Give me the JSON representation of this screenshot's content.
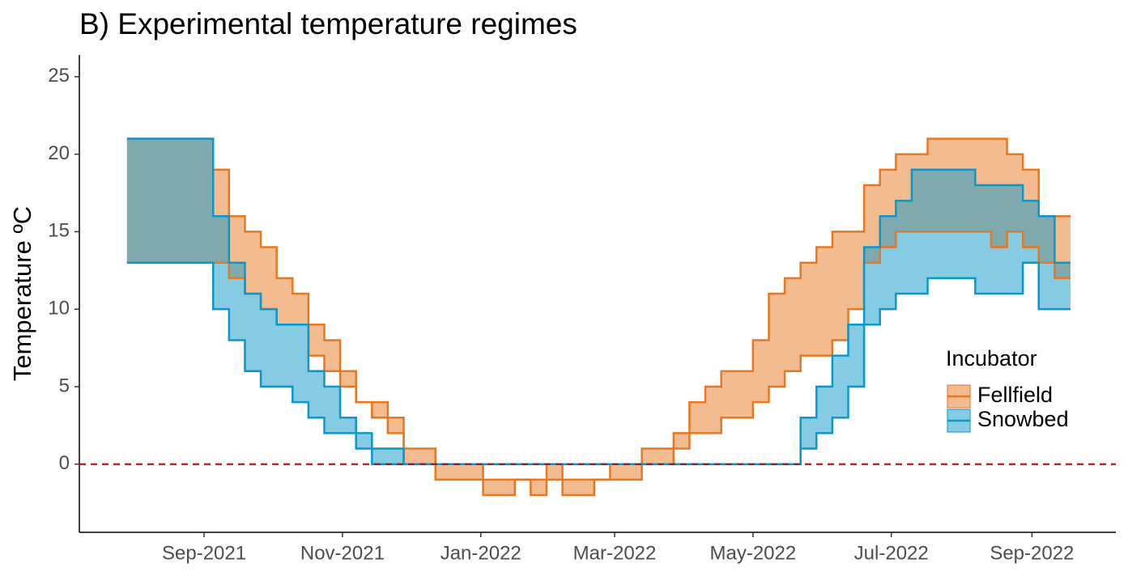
{
  "chart_data": {
    "type": "step-ribbon",
    "title": "B) Experimental temperature regimes",
    "y_label": "Temperature ºC",
    "legend_title": "Incubator",
    "legend": "right",
    "x": [
      "2021-07-29",
      "2021-09-05",
      "2021-09-12",
      "2021-09-19",
      "2021-09-26",
      "2021-10-03",
      "2021-10-10",
      "2021-10-17",
      "2021-10-24",
      "2021-10-31",
      "2021-11-07",
      "2021-11-14",
      "2021-11-21",
      "2021-11-28",
      "2021-12-05",
      "2021-12-12",
      "2021-12-19",
      "2021-12-26",
      "2022-01-02",
      "2022-01-09",
      "2022-01-16",
      "2022-01-23",
      "2022-01-30",
      "2022-02-06",
      "2022-02-13",
      "2022-02-20",
      "2022-02-27",
      "2022-03-06",
      "2022-03-13",
      "2022-03-20",
      "2022-03-27",
      "2022-04-03",
      "2022-04-10",
      "2022-04-17",
      "2022-04-24",
      "2022-05-01",
      "2022-05-08",
      "2022-05-15",
      "2022-05-22",
      "2022-05-29",
      "2022-06-05",
      "2022-06-12",
      "2022-06-19",
      "2022-06-26",
      "2022-07-03",
      "2022-07-10",
      "2022-07-17",
      "2022-07-24",
      "2022-07-31",
      "2022-08-07",
      "2022-08-14",
      "2022-08-21",
      "2022-08-28",
      "2022-09-04",
      "2022-09-11",
      "2022-09-18"
    ],
    "series": [
      {
        "name": "Fellfield",
        "color": "#e87722",
        "upper": [
          21,
          19,
          16,
          15,
          14,
          12,
          11,
          9,
          8,
          6,
          4,
          4,
          3,
          1,
          1,
          0,
          0,
          0,
          -1,
          -1,
          -1,
          -1,
          0,
          -1,
          -1,
          -1,
          0,
          0,
          1,
          1,
          2,
          4,
          5,
          6,
          6,
          8,
          11,
          12,
          13,
          14,
          15,
          15,
          18,
          19,
          20,
          20,
          21,
          21,
          21,
          21,
          21,
          20,
          19,
          16,
          16,
          16
        ],
        "lower": [
          13,
          13,
          12,
          11,
          10,
          9,
          9,
          7,
          6,
          5,
          4,
          3,
          2,
          0,
          0,
          -1,
          -1,
          -1,
          -2,
          -2,
          -1,
          -2,
          -1,
          -2,
          -2,
          -1,
          -1,
          -1,
          0,
          0,
          1,
          2,
          2,
          3,
          3,
          4,
          5,
          6,
          7,
          7,
          8,
          10,
          13,
          14,
          15,
          15,
          15,
          15,
          15,
          15,
          14,
          15,
          14,
          13,
          12,
          12
        ]
      },
      {
        "name": "Snowbed",
        "color": "#0b97c9",
        "upper": [
          21,
          16,
          13,
          11,
          10,
          9,
          9,
          6,
          5,
          3,
          2,
          1,
          1,
          0,
          0,
          0,
          0,
          0,
          0,
          0,
          0,
          0,
          0,
          0,
          0,
          0,
          0,
          0,
          0,
          0,
          0,
          0,
          0,
          0,
          0,
          0,
          0,
          0,
          3,
          5,
          7,
          9,
          14,
          16,
          17,
          19,
          19,
          19,
          19,
          18,
          18,
          18,
          17,
          16,
          13,
          13
        ],
        "lower": [
          13,
          10,
          8,
          6,
          5,
          5,
          4,
          3,
          2,
          2,
          1,
          0,
          0,
          0,
          0,
          0,
          0,
          0,
          0,
          0,
          0,
          0,
          0,
          0,
          0,
          0,
          0,
          0,
          0,
          0,
          0,
          0,
          0,
          0,
          0,
          0,
          0,
          0,
          1,
          2,
          3,
          5,
          9,
          10,
          11,
          11,
          12,
          12,
          12,
          11,
          11,
          11,
          13,
          10,
          10,
          10
        ]
      }
    ],
    "hline": {
      "value": 0,
      "color": "#cc0000"
    },
    "xlim": [
      "2021-07-08",
      "2022-10-08"
    ],
    "xticks": [
      {
        "value": "2021-09-01",
        "label": "Sep-2021"
      },
      {
        "value": "2021-11-01",
        "label": "Nov-2021"
      },
      {
        "value": "2022-01-01",
        "label": "Jan-2022"
      },
      {
        "value": "2022-03-01",
        "label": "Mar-2022"
      },
      {
        "value": "2022-05-01",
        "label": "May-2022"
      },
      {
        "value": "2022-07-01",
        "label": "Jul-2022"
      },
      {
        "value": "2022-09-01",
        "label": "Sep-2022"
      }
    ],
    "ylim": [
      -4.4,
      26.4
    ],
    "yticks": [
      0,
      5,
      10,
      15,
      20,
      25
    ]
  }
}
